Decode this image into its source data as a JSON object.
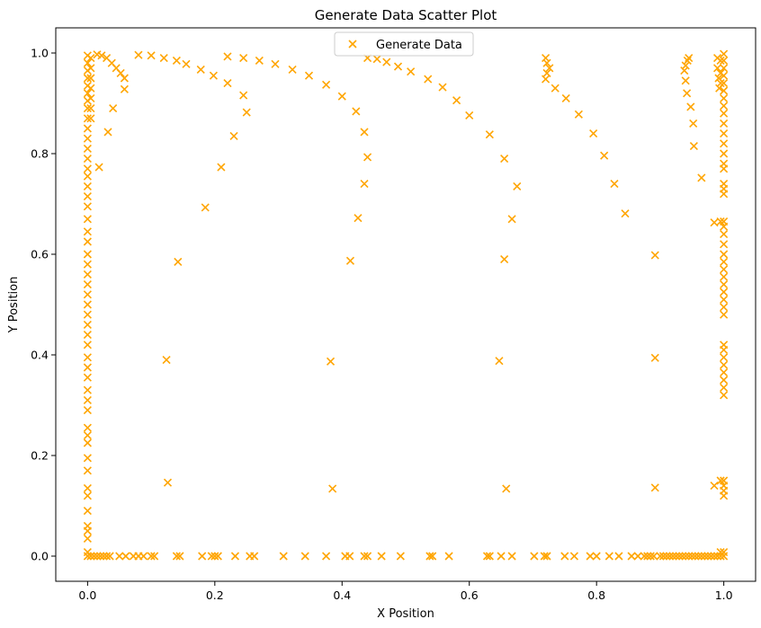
{
  "chart_data": {
    "type": "scatter",
    "title": "Generate Data Scatter Plot",
    "xlabel": "X Position",
    "ylabel": "Y Position",
    "xlim": [
      -0.05,
      1.05
    ],
    "ylim": [
      -0.05,
      1.05
    ],
    "xticks": [
      0.0,
      0.2,
      0.4,
      0.6,
      0.8,
      1.0
    ],
    "yticks": [
      0.0,
      0.2,
      0.4,
      0.6,
      0.8,
      1.0
    ],
    "xtick_labels": [
      "0.0",
      "0.2",
      "0.4",
      "0.6",
      "0.8",
      "1.0"
    ],
    "ytick_labels": [
      "0.0",
      "0.2",
      "0.4",
      "0.6",
      "0.8",
      "1.0"
    ],
    "grid": false,
    "legend_position": "top-center",
    "marker": "x",
    "color": "#ffa500",
    "series": [
      {
        "name": "Generate Data",
        "points": [
          [
            0.0,
            0.995
          ],
          [
            0.0,
            0.98
          ],
          [
            0.0,
            0.965
          ],
          [
            0.0,
            0.95
          ],
          [
            0.0,
            0.935
          ],
          [
            0.0,
            0.92
          ],
          [
            0.0,
            0.905
          ],
          [
            0.0,
            0.89
          ],
          [
            0.0,
            0.87
          ],
          [
            0.0,
            0.85
          ],
          [
            0.0,
            0.83
          ],
          [
            0.0,
            0.81
          ],
          [
            0.0,
            0.79
          ],
          [
            0.0,
            0.77
          ],
          [
            0.0,
            0.755
          ],
          [
            0.0,
            0.735
          ],
          [
            0.0,
            0.715
          ],
          [
            0.0,
            0.695
          ],
          [
            0.0,
            0.67
          ],
          [
            0.0,
            0.645
          ],
          [
            0.0,
            0.625
          ],
          [
            0.0,
            0.6
          ],
          [
            0.0,
            0.58
          ],
          [
            0.0,
            0.56
          ],
          [
            0.0,
            0.54
          ],
          [
            0.0,
            0.52
          ],
          [
            0.0,
            0.5
          ],
          [
            0.0,
            0.48
          ],
          [
            0.0,
            0.46
          ],
          [
            0.0,
            0.44
          ],
          [
            0.0,
            0.42
          ],
          [
            0.0,
            0.395
          ],
          [
            0.0,
            0.375
          ],
          [
            0.0,
            0.355
          ],
          [
            0.0,
            0.33
          ],
          [
            0.0,
            0.31
          ],
          [
            0.0,
            0.29
          ],
          [
            0.0,
            0.255
          ],
          [
            0.0,
            0.24
          ],
          [
            0.0,
            0.225
          ],
          [
            0.0,
            0.195
          ],
          [
            0.0,
            0.17
          ],
          [
            0.0,
            0.135
          ],
          [
            0.0,
            0.12
          ],
          [
            0.0,
            0.09
          ],
          [
            0.0,
            0.06
          ],
          [
            0.0,
            0.05
          ],
          [
            0.0,
            0.035
          ],
          [
            0.0,
            0.008
          ],
          [
            0.0,
            0.0
          ],
          [
            0.005,
            0.99
          ],
          [
            0.005,
            0.97
          ],
          [
            0.005,
            0.95
          ],
          [
            0.005,
            0.93
          ],
          [
            0.005,
            0.91
          ],
          [
            0.005,
            0.89
          ],
          [
            0.005,
            0.87
          ],
          [
            0.018,
            0.773
          ],
          [
            0.032,
            0.843
          ],
          [
            0.04,
            0.89
          ],
          [
            0.058,
            0.928
          ],
          [
            0.058,
            0.95
          ],
          [
            0.052,
            0.96
          ],
          [
            0.045,
            0.97
          ],
          [
            0.038,
            0.98
          ],
          [
            0.03,
            0.99
          ],
          [
            0.022,
            0.995
          ],
          [
            0.015,
            0.997
          ],
          [
            0.08,
            0.996
          ],
          [
            0.1,
            0.995
          ],
          [
            0.12,
            0.99
          ],
          [
            0.14,
            0.985
          ],
          [
            0.155,
            0.978
          ],
          [
            0.178,
            0.967
          ],
          [
            0.198,
            0.955
          ],
          [
            0.22,
            0.94
          ],
          [
            0.245,
            0.916
          ],
          [
            0.25,
            0.882
          ],
          [
            0.23,
            0.835
          ],
          [
            0.21,
            0.773
          ],
          [
            0.185,
            0.693
          ],
          [
            0.142,
            0.585
          ],
          [
            0.124,
            0.39
          ],
          [
            0.126,
            0.146
          ],
          [
            0.22,
            0.993
          ],
          [
            0.245,
            0.99
          ],
          [
            0.27,
            0.985
          ],
          [
            0.295,
            0.978
          ],
          [
            0.322,
            0.967
          ],
          [
            0.348,
            0.955
          ],
          [
            0.375,
            0.937
          ],
          [
            0.4,
            0.914
          ],
          [
            0.422,
            0.884
          ],
          [
            0.435,
            0.843
          ],
          [
            0.44,
            0.793
          ],
          [
            0.435,
            0.74
          ],
          [
            0.425,
            0.672
          ],
          [
            0.413,
            0.587
          ],
          [
            0.382,
            0.387
          ],
          [
            0.385,
            0.134
          ],
          [
            0.44,
            0.99
          ],
          [
            0.455,
            0.988
          ],
          [
            0.47,
            0.982
          ],
          [
            0.488,
            0.973
          ],
          [
            0.508,
            0.963
          ],
          [
            0.535,
            0.948
          ],
          [
            0.558,
            0.932
          ],
          [
            0.58,
            0.906
          ],
          [
            0.6,
            0.876
          ],
          [
            0.632,
            0.838
          ],
          [
            0.655,
            0.79
          ],
          [
            0.675,
            0.735
          ],
          [
            0.667,
            0.67
          ],
          [
            0.655,
            0.59
          ],
          [
            0.647,
            0.388
          ],
          [
            0.658,
            0.134
          ],
          [
            0.72,
            0.99
          ],
          [
            0.722,
            0.98
          ],
          [
            0.726,
            0.97
          ],
          [
            0.722,
            0.96
          ],
          [
            0.72,
            0.948
          ],
          [
            0.735,
            0.93
          ],
          [
            0.752,
            0.91
          ],
          [
            0.772,
            0.878
          ],
          [
            0.795,
            0.84
          ],
          [
            0.812,
            0.796
          ],
          [
            0.828,
            0.74
          ],
          [
            0.845,
            0.681
          ],
          [
            0.892,
            0.598
          ],
          [
            0.892,
            0.394
          ],
          [
            0.892,
            0.136
          ],
          [
            0.945,
            0.99
          ],
          [
            0.943,
            0.985
          ],
          [
            0.94,
            0.975
          ],
          [
            0.938,
            0.965
          ],
          [
            0.94,
            0.945
          ],
          [
            0.942,
            0.92
          ],
          [
            0.948,
            0.893
          ],
          [
            0.952,
            0.86
          ],
          [
            0.953,
            0.815
          ],
          [
            0.965,
            0.752
          ],
          [
            0.985,
            0.663
          ],
          [
            0.985,
            0.14
          ],
          [
            0.99,
            0.99
          ],
          [
            0.99,
            0.97
          ],
          [
            0.992,
            0.95
          ],
          [
            0.993,
            0.93
          ],
          [
            0.995,
            0.985
          ],
          [
            0.995,
            0.96
          ],
          [
            0.995,
            0.94
          ],
          [
            0.995,
            0.665
          ],
          [
            0.995,
            0.15
          ],
          [
            1.0,
            0.998
          ],
          [
            1.0,
            0.985
          ],
          [
            1.0,
            0.97
          ],
          [
            1.0,
            0.955
          ],
          [
            1.0,
            0.94
          ],
          [
            1.0,
            0.925
          ],
          [
            1.0,
            0.91
          ],
          [
            1.0,
            0.895
          ],
          [
            1.0,
            0.88
          ],
          [
            1.0,
            0.86
          ],
          [
            1.0,
            0.84
          ],
          [
            1.0,
            0.82
          ],
          [
            1.0,
            0.8
          ],
          [
            1.0,
            0.78
          ],
          [
            1.0,
            0.77
          ],
          [
            1.0,
            0.74
          ],
          [
            1.0,
            0.73
          ],
          [
            1.0,
            0.72
          ],
          [
            1.0,
            0.665
          ],
          [
            1.0,
            0.655
          ],
          [
            1.0,
            0.64
          ],
          [
            1.0,
            0.62
          ],
          [
            1.0,
            0.6
          ],
          [
            1.0,
            0.585
          ],
          [
            1.0,
            0.57
          ],
          [
            1.0,
            0.555
          ],
          [
            1.0,
            0.54
          ],
          [
            1.0,
            0.525
          ],
          [
            1.0,
            0.51
          ],
          [
            1.0,
            0.495
          ],
          [
            1.0,
            0.48
          ],
          [
            1.0,
            0.42
          ],
          [
            1.0,
            0.41
          ],
          [
            1.0,
            0.395
          ],
          [
            1.0,
            0.38
          ],
          [
            1.0,
            0.365
          ],
          [
            1.0,
            0.35
          ],
          [
            1.0,
            0.335
          ],
          [
            1.0,
            0.32
          ],
          [
            1.0,
            0.15
          ],
          [
            1.0,
            0.14
          ],
          [
            1.0,
            0.13
          ],
          [
            1.0,
            0.12
          ],
          [
            1.0,
            0.008
          ],
          [
            1.0,
            0.0
          ],
          [
            0.005,
            0.0
          ],
          [
            0.01,
            0.0
          ],
          [
            0.015,
            0.0
          ],
          [
            0.02,
            0.0
          ],
          [
            0.025,
            0.0
          ],
          [
            0.03,
            0.0
          ],
          [
            0.035,
            0.0
          ],
          [
            0.05,
            0.0
          ],
          [
            0.06,
            0.0
          ],
          [
            0.072,
            0.0
          ],
          [
            0.08,
            0.0
          ],
          [
            0.088,
            0.0
          ],
          [
            0.1,
            0.0
          ],
          [
            0.105,
            0.0
          ],
          [
            0.14,
            0.0
          ],
          [
            0.145,
            0.0
          ],
          [
            0.18,
            0.0
          ],
          [
            0.195,
            0.0
          ],
          [
            0.2,
            0.0
          ],
          [
            0.205,
            0.0
          ],
          [
            0.232,
            0.0
          ],
          [
            0.255,
            0.0
          ],
          [
            0.262,
            0.0
          ],
          [
            0.308,
            0.0
          ],
          [
            0.342,
            0.0
          ],
          [
            0.375,
            0.0
          ],
          [
            0.405,
            0.0
          ],
          [
            0.412,
            0.0
          ],
          [
            0.435,
            0.0
          ],
          [
            0.44,
            0.0
          ],
          [
            0.462,
            0.0
          ],
          [
            0.492,
            0.0
          ],
          [
            0.538,
            0.0
          ],
          [
            0.542,
            0.0
          ],
          [
            0.568,
            0.0
          ],
          [
            0.628,
            0.0
          ],
          [
            0.632,
            0.0
          ],
          [
            0.65,
            0.0
          ],
          [
            0.667,
            0.0
          ],
          [
            0.702,
            0.0
          ],
          [
            0.718,
            0.0
          ],
          [
            0.722,
            0.0
          ],
          [
            0.75,
            0.0
          ],
          [
            0.765,
            0.0
          ],
          [
            0.79,
            0.0
          ],
          [
            0.8,
            0.0
          ],
          [
            0.82,
            0.0
          ],
          [
            0.835,
            0.0
          ],
          [
            0.855,
            0.0
          ],
          [
            0.865,
            0.0
          ],
          [
            0.875,
            0.0
          ],
          [
            0.88,
            0.0
          ],
          [
            0.885,
            0.0
          ],
          [
            0.89,
            0.0
          ],
          [
            0.9,
            0.0
          ],
          [
            0.905,
            0.0
          ],
          [
            0.91,
            0.0
          ],
          [
            0.915,
            0.0
          ],
          [
            0.92,
            0.0
          ],
          [
            0.925,
            0.0
          ],
          [
            0.93,
            0.0
          ],
          [
            0.935,
            0.0
          ],
          [
            0.94,
            0.0
          ],
          [
            0.945,
            0.0
          ],
          [
            0.95,
            0.0
          ],
          [
            0.955,
            0.0
          ],
          [
            0.96,
            0.0
          ],
          [
            0.965,
            0.0
          ],
          [
            0.97,
            0.0
          ],
          [
            0.975,
            0.0
          ],
          [
            0.98,
            0.0
          ],
          [
            0.985,
            0.0
          ],
          [
            0.99,
            0.0
          ],
          [
            0.995,
            0.0
          ],
          [
            0.995,
            0.008
          ]
        ]
      }
    ]
  }
}
